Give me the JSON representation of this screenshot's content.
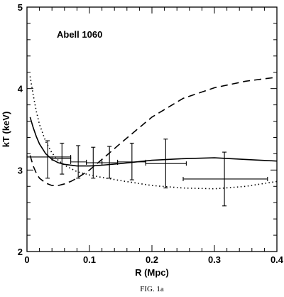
{
  "chart_data": {
    "type": "line",
    "title": "",
    "annotation": "Abell 1060",
    "xlabel": "R (Mpc)",
    "ylabel": "kT (keV)",
    "xlim": [
      0,
      0.4
    ],
    "ylim": [
      2,
      5
    ],
    "xticks": [
      0,
      0.1,
      0.2,
      0.3,
      0.4
    ],
    "xtick_labels": [
      "0",
      "0.1",
      "0.2",
      "0.3",
      "0.4"
    ],
    "yticks": [
      2,
      3,
      4,
      5
    ],
    "ytick_labels": [
      "2",
      "3",
      "4",
      "5"
    ],
    "grid": false,
    "legend": "none",
    "caption": "FIG. 1a",
    "data_points": [
      {
        "x": 0.033,
        "y": 3.16,
        "xlo": 0.0,
        "xhi": 0.07,
        "ylo": 2.9,
        "yhi": 3.36
      },
      {
        "x": 0.056,
        "y": 3.14,
        "xlo": 0.04,
        "xhi": 0.07,
        "ylo": 2.95,
        "yhi": 3.33
      },
      {
        "x": 0.082,
        "y": 3.1,
        "xlo": 0.07,
        "xhi": 0.095,
        "ylo": 2.9,
        "yhi": 3.3
      },
      {
        "x": 0.106,
        "y": 3.09,
        "xlo": 0.095,
        "xhi": 0.12,
        "ylo": 2.9,
        "yhi": 3.28
      },
      {
        "x": 0.132,
        "y": 3.09,
        "xlo": 0.12,
        "xhi": 0.145,
        "ylo": 2.9,
        "yhi": 3.29
      },
      {
        "x": 0.168,
        "y": 3.1,
        "xlo": 0.145,
        "xhi": 0.19,
        "ylo": 2.88,
        "yhi": 3.33
      },
      {
        "x": 0.222,
        "y": 3.08,
        "xlo": 0.19,
        "xhi": 0.255,
        "ylo": 2.78,
        "yhi": 3.38
      },
      {
        "x": 0.316,
        "y": 2.89,
        "xlo": 0.25,
        "xhi": 0.385,
        "ylo": 2.56,
        "yhi": 3.22
      }
    ],
    "series": [
      {
        "style": "solid",
        "x": [
          0.005,
          0.01,
          0.015,
          0.02,
          0.03,
          0.04,
          0.05,
          0.06,
          0.08,
          0.1,
          0.12,
          0.15,
          0.2,
          0.25,
          0.3,
          0.35,
          0.4
        ],
        "y": [
          3.65,
          3.52,
          3.41,
          3.32,
          3.2,
          3.13,
          3.09,
          3.07,
          3.05,
          3.05,
          3.06,
          3.08,
          3.12,
          3.14,
          3.15,
          3.13,
          3.11
        ]
      },
      {
        "style": "dotted",
        "x": [
          0.005,
          0.01,
          0.015,
          0.02,
          0.03,
          0.04,
          0.05,
          0.06,
          0.08,
          0.1,
          0.12,
          0.15,
          0.2,
          0.25,
          0.3,
          0.35,
          0.4
        ],
        "y": [
          4.15,
          3.92,
          3.72,
          3.56,
          3.35,
          3.21,
          3.12,
          3.06,
          2.98,
          2.94,
          2.91,
          2.87,
          2.81,
          2.78,
          2.77,
          2.8,
          2.86
        ]
      },
      {
        "style": "dashed",
        "x": [
          0.005,
          0.01,
          0.015,
          0.02,
          0.03,
          0.04,
          0.05,
          0.06,
          0.07,
          0.08,
          0.09,
          0.1,
          0.12,
          0.15,
          0.2,
          0.25,
          0.3,
          0.35,
          0.4
        ],
        "y": [
          3.18,
          3.05,
          2.96,
          2.9,
          2.84,
          2.81,
          2.81,
          2.83,
          2.86,
          2.9,
          2.95,
          3.0,
          3.13,
          3.33,
          3.65,
          3.88,
          4.01,
          4.09,
          4.14
        ]
      }
    ]
  }
}
